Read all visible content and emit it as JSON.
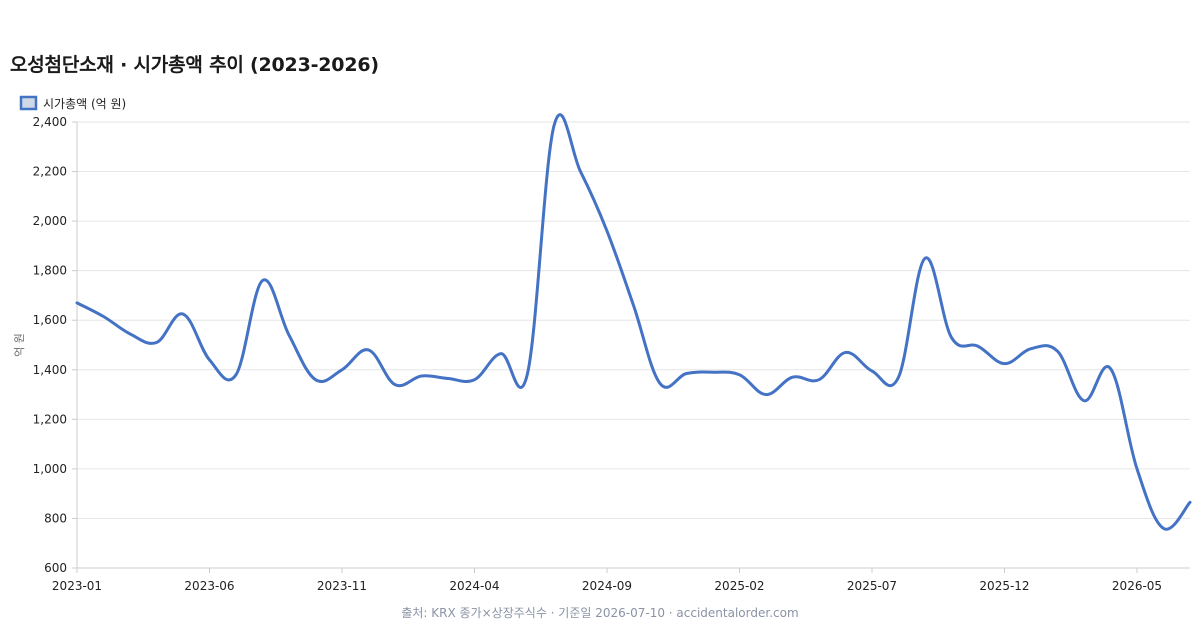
{
  "header": {
    "title": "오성첨단소재 · 시가총액 추이 (2023-2026)"
  },
  "footer": {
    "source": "출처: KRX 종가×상장주식수 · 기준일 2026-07-10 · accidentalorder.com"
  },
  "colors": {
    "line": "#4472c4",
    "legend_fill": "#cfd8e6",
    "grid": "#e6e6e6",
    "axis": "#cccccc",
    "tick_text": "#222222",
    "footer_text": "#8a93a5"
  },
  "chart_data": {
    "type": "line",
    "title": "오성첨단소재 · 시가총액 추이 (2023-2026)",
    "xlabel": "",
    "ylabel": "억 원",
    "ylim": [
      600,
      2400
    ],
    "yticks": [
      600,
      800,
      1000,
      1200,
      1400,
      1600,
      1800,
      2000,
      2200,
      2400
    ],
    "xticks": [
      "2023-01",
      "2023-06",
      "2023-11",
      "2024-04",
      "2024-09",
      "2025-02",
      "2025-07",
      "2025-12",
      "2026-05"
    ],
    "grid": true,
    "legend_position": "top-left",
    "x": [
      "2023-01",
      "2023-02",
      "2023-03",
      "2023-04",
      "2023-05",
      "2023-06",
      "2023-07",
      "2023-08",
      "2023-09",
      "2023-10",
      "2023-11",
      "2023-12",
      "2024-01",
      "2024-02",
      "2024-03",
      "2024-04",
      "2024-05",
      "2024-06",
      "2024-07",
      "2024-08",
      "2024-09",
      "2024-10",
      "2024-11",
      "2024-12",
      "2025-01",
      "2025-02",
      "2025-03",
      "2025-04",
      "2025-05",
      "2025-06",
      "2025-07",
      "2025-08",
      "2025-09",
      "2025-10",
      "2025-11",
      "2025-12",
      "2026-01",
      "2026-02",
      "2026-03",
      "2026-04",
      "2026-05",
      "2026-06",
      "2026-07"
    ],
    "series": [
      {
        "name": "시가총액 (억 원)",
        "values": [
          1670,
          1615,
          1545,
          1510,
          1625,
          1440,
          1380,
          1760,
          1540,
          1360,
          1400,
          1480,
          1340,
          1375,
          1365,
          1360,
          1465,
          1385,
          2385,
          2200,
          1960,
          1660,
          1345,
          1385,
          1390,
          1380,
          1300,
          1370,
          1360,
          1470,
          1395,
          1370,
          1850,
          1530,
          1495,
          1425,
          1485,
          1475,
          1275,
          1405,
          1000,
          760,
          865
        ]
      }
    ]
  }
}
